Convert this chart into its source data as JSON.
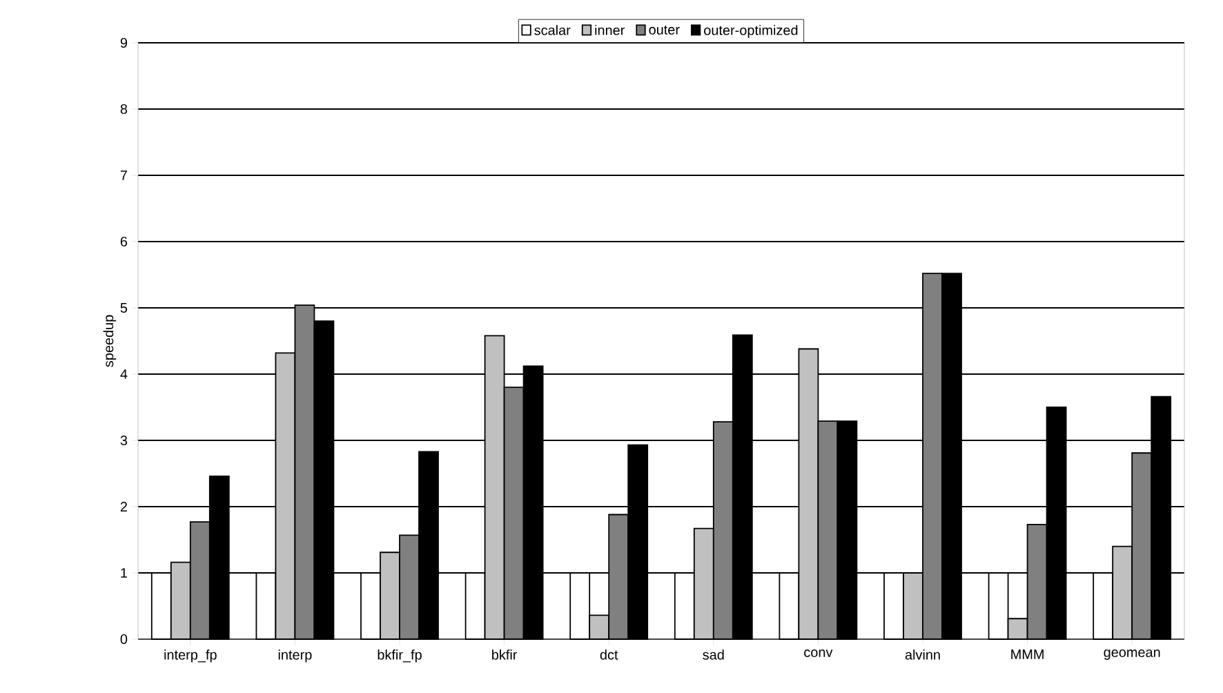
{
  "chart_data": {
    "type": "bar",
    "ylabel": "speedup",
    "categories": [
      "interp_fp",
      "interp",
      "bkfir_fp",
      "bkfir",
      "dct",
      "sad",
      "conv",
      "alvinn",
      "MMM",
      "geomean"
    ],
    "series": [
      {
        "name": "scalar",
        "color": "#ffffff",
        "values": [
          1,
          1,
          1,
          1,
          1,
          1,
          1,
          1,
          1,
          1
        ]
      },
      {
        "name": "inner",
        "color": "#c0c0c0",
        "values": [
          1.16,
          4.32,
          1.31,
          4.58,
          0.36,
          1.67,
          4.38,
          1.0,
          0.31,
          1.4
        ]
      },
      {
        "name": "outer",
        "color": "#808080",
        "values": [
          1.77,
          5.04,
          1.57,
          3.8,
          1.88,
          3.28,
          3.29,
          5.52,
          1.73,
          2.81
        ]
      },
      {
        "name": "outer-optimized",
        "color": "#000000",
        "values": [
          2.46,
          4.8,
          2.83,
          4.12,
          2.93,
          4.59,
          3.29,
          5.52,
          3.5,
          3.66
        ]
      }
    ],
    "ylim": [
      0,
      9
    ],
    "yticks": [
      0,
      1,
      2,
      3,
      4,
      5,
      6,
      7,
      8,
      9
    ],
    "grid": "y",
    "legend": "top"
  }
}
